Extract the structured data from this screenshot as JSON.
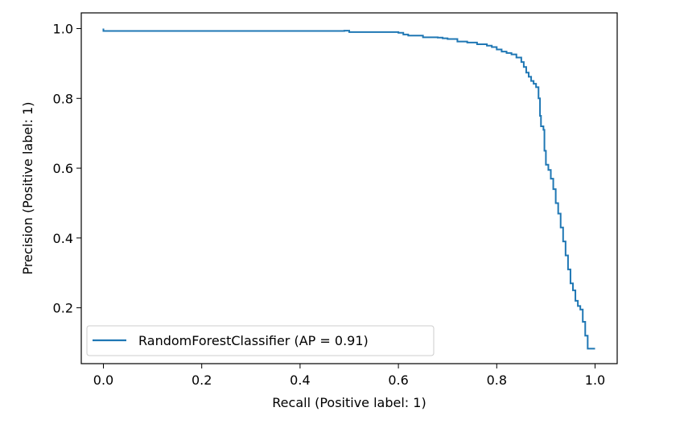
{
  "chart_data": {
    "type": "line",
    "title": "",
    "xlabel": "Recall (Positive label: 1)",
    "ylabel": "Precision (Positive label: 1)",
    "xlim": [
      -0.045,
      1.045
    ],
    "ylim": [
      0.04,
      1.045
    ],
    "x_ticks": [
      0.0,
      0.2,
      0.4,
      0.6,
      0.8,
      1.0
    ],
    "x_tick_labels": [
      "0.0",
      "0.2",
      "0.4",
      "0.6",
      "0.8",
      "1.0"
    ],
    "y_ticks": [
      0.2,
      0.4,
      0.6,
      0.8,
      1.0
    ],
    "y_tick_labels": [
      "0.2",
      "0.4",
      "0.6",
      "0.8",
      "1.0"
    ],
    "grid": false,
    "legend_position": "lower-left",
    "series": [
      {
        "name": "RandomForestClassifier (AP = 0.91)",
        "color": "#1f77b4",
        "drawstyle": "steps-post",
        "points": [
          [
            0.0,
            1.0
          ],
          [
            0.0,
            0.993
          ],
          [
            0.15,
            0.993
          ],
          [
            0.3,
            0.993
          ],
          [
            0.49,
            0.994
          ],
          [
            0.5,
            0.99
          ],
          [
            0.57,
            0.99
          ],
          [
            0.6,
            0.988
          ],
          [
            0.61,
            0.983
          ],
          [
            0.62,
            0.98
          ],
          [
            0.65,
            0.975
          ],
          [
            0.68,
            0.974
          ],
          [
            0.69,
            0.972
          ],
          [
            0.7,
            0.97
          ],
          [
            0.72,
            0.963
          ],
          [
            0.74,
            0.96
          ],
          [
            0.76,
            0.955
          ],
          [
            0.78,
            0.951
          ],
          [
            0.79,
            0.947
          ],
          [
            0.8,
            0.94
          ],
          [
            0.81,
            0.934
          ],
          [
            0.82,
            0.93
          ],
          [
            0.83,
            0.926
          ],
          [
            0.84,
            0.917
          ],
          [
            0.85,
            0.904
          ],
          [
            0.855,
            0.89
          ],
          [
            0.86,
            0.874
          ],
          [
            0.865,
            0.862
          ],
          [
            0.87,
            0.85
          ],
          [
            0.875,
            0.842
          ],
          [
            0.88,
            0.832
          ],
          [
            0.885,
            0.8
          ],
          [
            0.888,
            0.75
          ],
          [
            0.89,
            0.72
          ],
          [
            0.895,
            0.71
          ],
          [
            0.897,
            0.65
          ],
          [
            0.9,
            0.61
          ],
          [
            0.905,
            0.595
          ],
          [
            0.91,
            0.57
          ],
          [
            0.915,
            0.54
          ],
          [
            0.92,
            0.5
          ],
          [
            0.925,
            0.47
          ],
          [
            0.93,
            0.43
          ],
          [
            0.935,
            0.39
          ],
          [
            0.94,
            0.35
          ],
          [
            0.945,
            0.31
          ],
          [
            0.95,
            0.27
          ],
          [
            0.955,
            0.25
          ],
          [
            0.96,
            0.22
          ],
          [
            0.965,
            0.205
          ],
          [
            0.97,
            0.195
          ],
          [
            0.975,
            0.16
          ],
          [
            0.98,
            0.12
          ],
          [
            0.985,
            0.083
          ],
          [
            1.0,
            0.083
          ]
        ]
      }
    ]
  }
}
